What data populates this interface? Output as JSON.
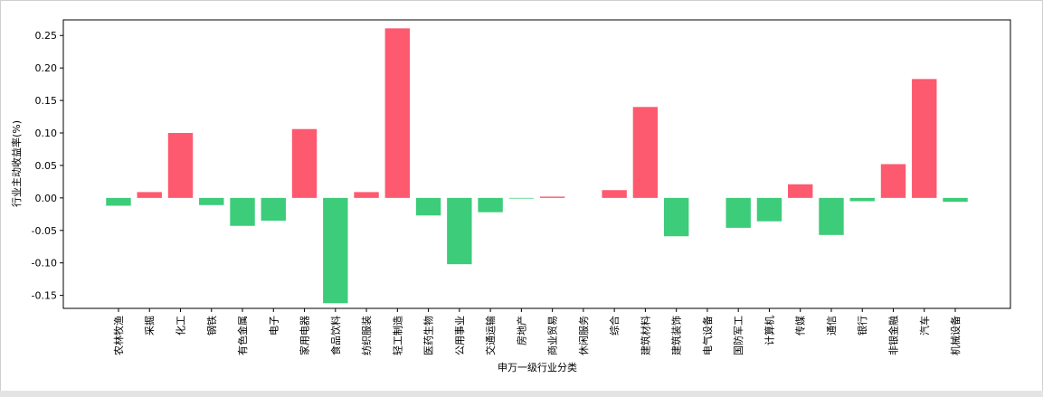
{
  "chart_data": {
    "type": "bar",
    "ylabel": "行业主动收益率(%)",
    "xlabel": "申万一级行业分类",
    "categories": [
      "农林牧渔",
      "采掘",
      "化工",
      "钢铁",
      "有色金属",
      "电子",
      "家用电器",
      "食品饮料",
      "纺织服装",
      "轻工制造",
      "医药生物",
      "公用事业",
      "交通运输",
      "房地产",
      "商业贸易",
      "休闲服务",
      "综合",
      "建筑材料",
      "建筑装饰",
      "电气设备",
      "国防军工",
      "计算机",
      "传媒",
      "通信",
      "银行",
      "非银金融",
      "汽车",
      "机械设备"
    ],
    "values": [
      -0.012,
      0.009,
      0.1,
      -0.011,
      -0.043,
      -0.035,
      0.106,
      -0.162,
      0.009,
      0.261,
      -0.027,
      -0.102,
      -0.022,
      -0.001,
      0.002,
      0,
      0.012,
      0.14,
      -0.059,
      0,
      -0.046,
      -0.036,
      0.021,
      -0.057,
      -0.005,
      0.052,
      0.183,
      -0.006
    ],
    "colors": {
      "positive": "#fd5a6f",
      "negative": "#3dcc7a"
    },
    "ylim": [
      -0.17,
      0.274
    ],
    "yticks": [
      -0.15,
      {
        "value": -0.1,
        "label": "-0.10"
      },
      -0.05,
      {
        "value": 0,
        "label": "0.00"
      },
      0.05,
      {
        "value": 0.1,
        "label": "0.10"
      },
      0.15,
      {
        "value": 0.2,
        "label": "0.20"
      },
      0.25
    ]
  }
}
